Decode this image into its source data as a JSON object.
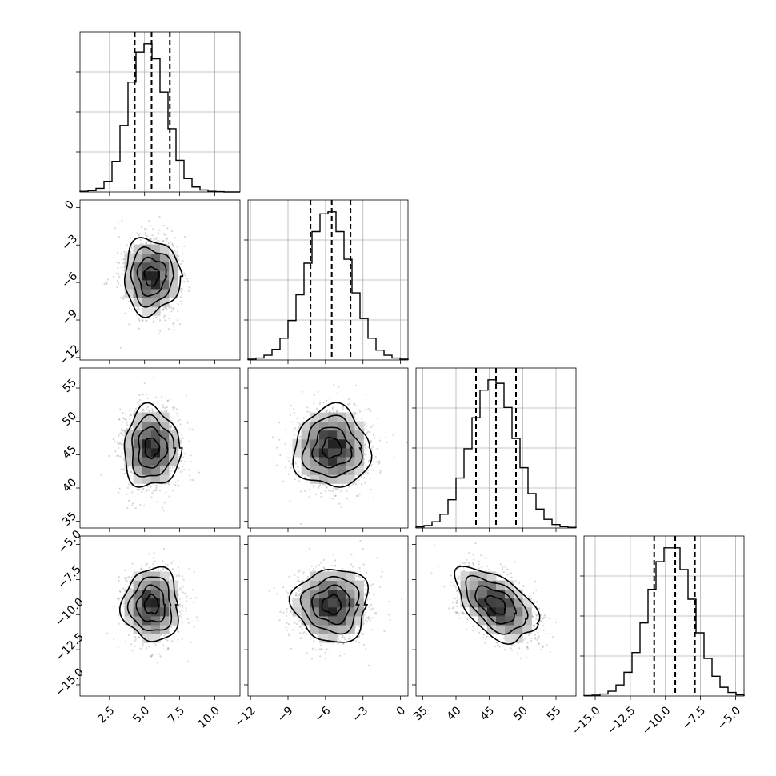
{
  "chart_data": {
    "type": "corner",
    "title": "",
    "parameters": [
      {
        "range": [
          0.4,
          11.8
        ],
        "ticks": [
          2.5,
          5.0,
          7.5,
          10.0
        ],
        "tick_labels": [
          "2.5",
          "5.0",
          "7.5",
          "10.0"
        ],
        "mean": 5.5,
        "std": 1.0,
        "quantiles": [
          4.3,
          5.5,
          6.8
        ]
      },
      {
        "range": [
          -12.2,
          0.6
        ],
        "ticks": [
          -12,
          -9,
          -6,
          -3,
          0
        ],
        "tick_labels": [
          "−12",
          "−9",
          "−6",
          "−3",
          "0"
        ],
        "mean": -5.5,
        "std": 1.5,
        "quantiles": [
          -7.2,
          -5.5,
          -4.0
        ]
      },
      {
        "range": [
          34.0,
          58.0
        ],
        "ticks": [
          35,
          40,
          45,
          50,
          55
        ],
        "tick_labels": [
          "35",
          "40",
          "45",
          "50",
          "55"
        ],
        "mean": 46.0,
        "std": 3.0,
        "quantiles": [
          43.0,
          46.0,
          49.0
        ]
      },
      {
        "range": [
          -15.8,
          -4.4
        ],
        "ticks": [
          -15.0,
          -12.5,
          -10.0,
          -7.5,
          -5.0
        ],
        "tick_labels": [
          "−15.0",
          "−12.5",
          "−10.0",
          "−7.5",
          "−5.0"
        ],
        "mean": -9.3,
        "std": 1.3,
        "quantiles": [
          -10.8,
          -9.3,
          -7.9
        ]
      }
    ],
    "histograms": [
      {
        "param": 0,
        "bin_edges": [
          0.4,
          0.97,
          1.54,
          2.11,
          2.68,
          3.25,
          3.82,
          4.39,
          4.96,
          5.53,
          6.1,
          6.67,
          7.24,
          7.81,
          8.38,
          8.95,
          9.52,
          10.09,
          10.66,
          11.23,
          11.8
        ],
        "counts": [
          2,
          4,
          11,
          32,
          92,
          200,
          330,
          420,
          445,
          400,
          300,
          190,
          95,
          40,
          15,
          6,
          2,
          1,
          0,
          0
        ]
      },
      {
        "param": 1,
        "bin_edges": [
          -12.2,
          -11.56,
          -10.92,
          -10.28,
          -9.64,
          -9.0,
          -8.36,
          -7.72,
          -7.08,
          -6.44,
          -5.8,
          -5.16,
          -4.52,
          -3.88,
          -3.24,
          -2.6,
          -1.96,
          -1.32,
          -0.68,
          -0.04,
          0.6
        ],
        "counts": [
          2,
          5,
          12,
          27,
          55,
          100,
          165,
          245,
          325,
          370,
          375,
          325,
          255,
          170,
          105,
          55,
          25,
          12,
          5,
          2
        ]
      },
      {
        "param": 2,
        "bin_edges": [
          34.0,
          35.2,
          36.4,
          37.6,
          38.8,
          40.0,
          41.2,
          42.4,
          43.6,
          44.8,
          46.0,
          47.2,
          48.4,
          49.6,
          50.8,
          52.0,
          53.2,
          54.4,
          55.6,
          56.8,
          58.0
        ],
        "counts": [
          3,
          7,
          18,
          40,
          82,
          145,
          230,
          320,
          400,
          430,
          420,
          350,
          260,
          175,
          100,
          55,
          25,
          10,
          4,
          2
        ]
      },
      {
        "param": 3,
        "bin_edges": [
          -15.8,
          -15.23,
          -14.66,
          -14.09,
          -13.52,
          -12.95,
          -12.38,
          -11.81,
          -11.24,
          -10.67,
          -10.1,
          -9.53,
          -8.96,
          -8.39,
          -7.82,
          -7.25,
          -6.68,
          -6.11,
          -5.54,
          -4.97,
          -4.4
        ],
        "counts": [
          1,
          2,
          5,
          12,
          28,
          60,
          110,
          185,
          270,
          340,
          375,
          375,
          320,
          245,
          160,
          95,
          50,
          22,
          9,
          3
        ]
      }
    ],
    "pairs": [
      {
        "x_param": 0,
        "y_param": 1,
        "correlation": 0.0
      },
      {
        "x_param": 0,
        "y_param": 2,
        "correlation": 0.0
      },
      {
        "x_param": 1,
        "y_param": 2,
        "correlation": 0.0
      },
      {
        "x_param": 0,
        "y_param": 3,
        "correlation": 0.0
      },
      {
        "x_param": 1,
        "y_param": 3,
        "correlation": 0.0
      },
      {
        "x_param": 2,
        "y_param": 3,
        "correlation": -0.5
      }
    ],
    "contour_sigma_levels": [
      0.5,
      1.0,
      1.5,
      2.0
    ],
    "grid": true,
    "colors": {
      "line": "#000000",
      "grid": "#b0b0b0",
      "points": "#8c8c8c"
    }
  }
}
